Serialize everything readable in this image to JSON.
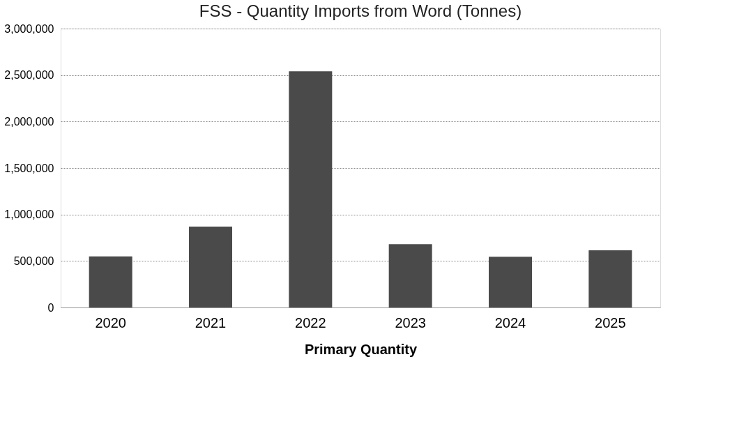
{
  "chart_data": {
    "type": "bar",
    "title": "FSS - Quantity Imports from Word (Tonnes)",
    "xlabel": "Primary Quantity",
    "categories": [
      "2020",
      "2021",
      "2022",
      "2023",
      "2024",
      "2025"
    ],
    "values": [
      550000,
      870000,
      2540000,
      680000,
      545000,
      615000
    ],
    "color": "#4a4a4a",
    "ylim": [
      0,
      3000000
    ],
    "yticks": [
      {
        "value": 0,
        "label": "0"
      },
      {
        "value": 500000,
        "label": "500,000"
      },
      {
        "value": 1000000,
        "label": "1,000,000"
      },
      {
        "value": 1500000,
        "label": "1,500,000"
      },
      {
        "value": 2000000,
        "label": "2,000,000"
      },
      {
        "value": 2500000,
        "label": "2,500,000"
      },
      {
        "value": 3000000,
        "label": "3,000,000"
      }
    ],
    "grid": "y"
  }
}
